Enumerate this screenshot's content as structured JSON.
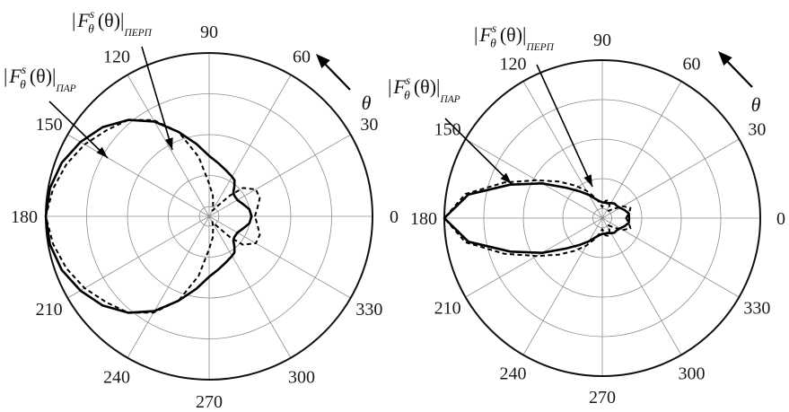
{
  "chart_data": [
    {
      "type": "polar-line",
      "angle_ticks": [
        "0",
        "30",
        "60",
        "90",
        "120",
        "150",
        "180",
        "210",
        "240",
        "270",
        "300",
        "330"
      ],
      "angle_symbol": "θ",
      "series": [
        {
          "style": "solid",
          "label": {
            "main": "F",
            "sup": "s",
            "sub": "θ",
            "arg": "(θ)",
            "tag": "ПАР"
          },
          "angles": [
            0,
            10,
            20,
            30,
            40,
            45,
            50,
            55,
            60,
            70,
            80,
            90,
            100,
            110,
            120,
            130,
            140,
            150,
            160,
            170,
            180,
            190,
            200,
            210,
            220,
            230,
            240,
            250,
            260,
            270,
            280,
            290,
            300,
            305,
            310,
            315,
            320,
            330,
            340,
            350
          ],
          "r": [
            0.26,
            0.25,
            0.22,
            0.2,
            0.2,
            0.21,
            0.24,
            0.27,
            0.28,
            0.3,
            0.33,
            0.37,
            0.45,
            0.55,
            0.67,
            0.77,
            0.85,
            0.91,
            0.96,
            0.99,
            1.0,
            0.99,
            0.96,
            0.91,
            0.85,
            0.77,
            0.67,
            0.55,
            0.45,
            0.37,
            0.33,
            0.3,
            0.28,
            0.27,
            0.24,
            0.21,
            0.2,
            0.2,
            0.22,
            0.25
          ]
        },
        {
          "style": "dashed",
          "label": {
            "main": "F",
            "sup": "s",
            "sub": "θ",
            "arg": "(θ)",
            "tag": "ПЕРП"
          },
          "angles": [
            0,
            10,
            20,
            30,
            40,
            45,
            50,
            60,
            70,
            80,
            90,
            100,
            110,
            120,
            130,
            140,
            150,
            160,
            170,
            180,
            190,
            200,
            210,
            220,
            230,
            240,
            250,
            260,
            270,
            280,
            290,
            300,
            310,
            315,
            320,
            330,
            340,
            350
          ],
          "r": [
            0.28,
            0.3,
            0.33,
            0.33,
            0.27,
            0.18,
            0.09,
            0.04,
            0.07,
            0.13,
            0.2,
            0.37,
            0.55,
            0.68,
            0.77,
            0.82,
            0.88,
            0.93,
            0.97,
            1.0,
            0.97,
            0.93,
            0.88,
            0.82,
            0.77,
            0.68,
            0.55,
            0.37,
            0.2,
            0.13,
            0.07,
            0.04,
            0.09,
            0.18,
            0.27,
            0.33,
            0.33,
            0.3
          ]
        }
      ]
    },
    {
      "type": "polar-line",
      "angle_ticks": [
        "0",
        "30",
        "60",
        "90",
        "120",
        "150",
        "180",
        "210",
        "240",
        "270",
        "300",
        "330"
      ],
      "angle_symbol": "θ",
      "series": [
        {
          "style": "solid",
          "label": {
            "main": "F",
            "sup": "s",
            "sub": "θ",
            "arg": "(θ)",
            "tag": "ПАР"
          },
          "angles": [
            0,
            10,
            20,
            30,
            40,
            50,
            60,
            70,
            80,
            90,
            100,
            110,
            120,
            130,
            140,
            150,
            160,
            170,
            180,
            190,
            200,
            210,
            220,
            230,
            240,
            250,
            260,
            270,
            280,
            290,
            300,
            310,
            320,
            330,
            340,
            350
          ],
          "r": [
            0.17,
            0.17,
            0.15,
            0.13,
            0.12,
            0.12,
            0.11,
            0.1,
            0.1,
            0.1,
            0.11,
            0.13,
            0.17,
            0.22,
            0.3,
            0.44,
            0.62,
            0.86,
            1.0,
            0.86,
            0.62,
            0.44,
            0.3,
            0.22,
            0.17,
            0.13,
            0.11,
            0.1,
            0.1,
            0.1,
            0.11,
            0.12,
            0.12,
            0.13,
            0.15,
            0.17
          ]
        },
        {
          "style": "dashed",
          "label": {
            "main": "F",
            "sup": "s",
            "sub": "θ",
            "arg": "(θ)",
            "tag": "ПЕРП"
          },
          "angles": [
            0,
            10,
            20,
            30,
            40,
            50,
            60,
            70,
            80,
            90,
            100,
            110,
            120,
            130,
            140,
            150,
            160,
            170,
            180,
            190,
            200,
            210,
            220,
            230,
            240,
            250,
            260,
            270,
            280,
            290,
            300,
            310,
            320,
            330,
            340,
            350
          ],
          "r": [
            0.15,
            0.17,
            0.19,
            0.15,
            0.09,
            0.06,
            0.09,
            0.12,
            0.11,
            0.07,
            0.1,
            0.14,
            0.2,
            0.27,
            0.36,
            0.48,
            0.66,
            0.88,
            1.0,
            0.88,
            0.66,
            0.48,
            0.36,
            0.27,
            0.2,
            0.14,
            0.1,
            0.07,
            0.11,
            0.12,
            0.09,
            0.06,
            0.09,
            0.15,
            0.19,
            0.17
          ]
        }
      ]
    }
  ]
}
